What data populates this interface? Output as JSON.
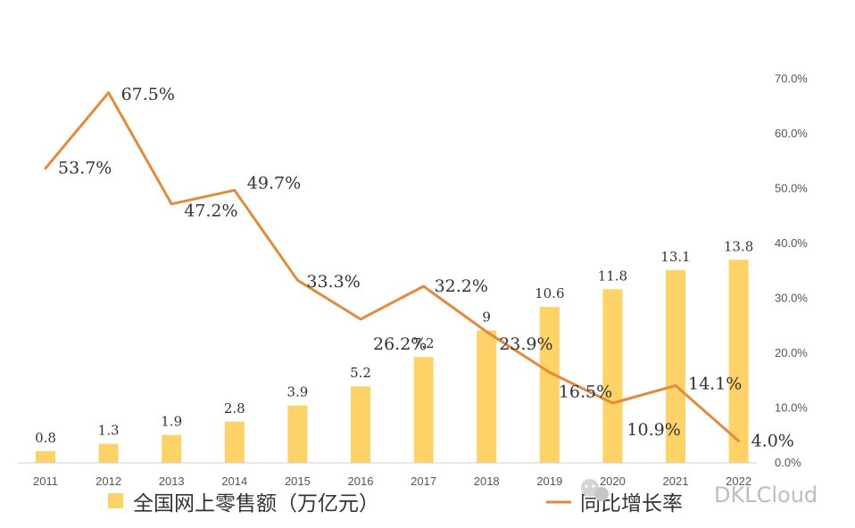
{
  "chart_data": {
    "type": "bar+line",
    "categories": [
      "2011",
      "2012",
      "2013",
      "2014",
      "2015",
      "2016",
      "2017",
      "2018",
      "2019",
      "2020",
      "2021",
      "2022"
    ],
    "series": [
      {
        "name": "全国网上零售额（万亿元）",
        "type": "bar",
        "values": [
          0.8,
          1.3,
          1.9,
          2.8,
          3.9,
          5.2,
          7.2,
          9,
          10.6,
          11.8,
          13.1,
          13.8
        ],
        "labels": [
          "0.8",
          "1.3",
          "1.9",
          "2.8",
          "3.9",
          "5.2",
          "7.2",
          "9",
          "10.6",
          "11.8",
          "13.1",
          "13.8"
        ],
        "color": "#fdd266"
      },
      {
        "name": "同比增长率",
        "type": "line",
        "axis": "right",
        "values": [
          53.7,
          67.5,
          47.2,
          49.7,
          33.3,
          26.2,
          32.2,
          23.9,
          16.5,
          10.9,
          14.1,
          4.0
        ],
        "labels": [
          "53.7%",
          "67.5%",
          "47.2%",
          "49.7%",
          "33.3%",
          "26.2%",
          "32.2%",
          "23.9%",
          "16.5%",
          "10.9%",
          "14.1%",
          "4.0%"
        ],
        "color": "#e58a3c"
      }
    ],
    "right_axis": {
      "ylim": [
        0,
        70
      ],
      "ticks": [
        "0.0%",
        "10.0%",
        "20.0%",
        "30.0%",
        "40.0%",
        "50.0%",
        "60.0%",
        "70.0%"
      ]
    },
    "legend": "bottom",
    "grid": false
  },
  "watermark": {
    "text": "DKLCloud",
    "icon": "wechat-icon"
  }
}
